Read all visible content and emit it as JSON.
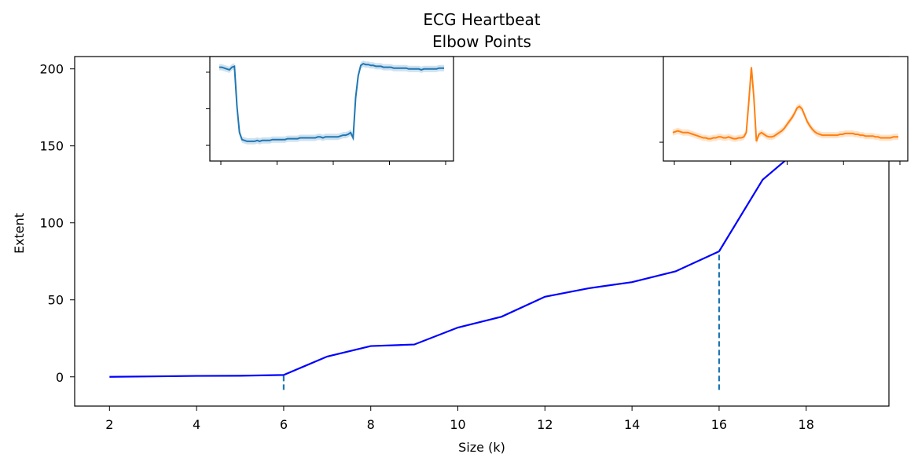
{
  "chart_data": {
    "type": "line",
    "title": "ECG Heartbeat",
    "subtitle": "Elbow Points",
    "xlabel": "Size (k)",
    "ylabel": "Extent",
    "xlim": [
      1.2,
      19.9
    ],
    "ylim": [
      -19,
      208
    ],
    "x_ticks": [
      2,
      4,
      6,
      8,
      10,
      12,
      14,
      16,
      18
    ],
    "y_ticks": [
      0,
      50,
      100,
      150,
      200
    ],
    "series": [
      {
        "color": "#0000ff",
        "x": [
          2,
          3,
          4,
          5,
          6,
          7,
          8,
          9,
          10,
          11,
          12,
          13,
          14,
          15,
          16,
          17,
          18,
          19
        ],
        "y": [
          0,
          0.3,
          0.6,
          0.7,
          1.2,
          13.2,
          20,
          21,
          32,
          39,
          52,
          57.5,
          61.5,
          68.5,
          81.5,
          128,
          152,
          175
        ]
      }
    ],
    "elbow_points": {
      "x": [
        6,
        16
      ],
      "color": "#1f77b4",
      "line_style": "dashed",
      "y_start": -8.5
    },
    "insets": [
      {
        "k": 6,
        "color": "#1f77b4",
        "profile": [
          0.95,
          0.95,
          0.94,
          0.93,
          0.92,
          0.95,
          0.96,
          0.5,
          0.2,
          0.12,
          0.11,
          0.1,
          0.1,
          0.1,
          0.1,
          0.11,
          0.1,
          0.11,
          0.11,
          0.11,
          0.11,
          0.12,
          0.12,
          0.12,
          0.12,
          0.12,
          0.12,
          0.13,
          0.13,
          0.13,
          0.13,
          0.13,
          0.14,
          0.14,
          0.14,
          0.14,
          0.14,
          0.14,
          0.14,
          0.15,
          0.15,
          0.14,
          0.15,
          0.15,
          0.15,
          0.15,
          0.15,
          0.15,
          0.16,
          0.17,
          0.17,
          0.18,
          0.2,
          0.14,
          0.6,
          0.85,
          0.97,
          0.99,
          0.98,
          0.98,
          0.97,
          0.97,
          0.96,
          0.96,
          0.96,
          0.95,
          0.95,
          0.95,
          0.95,
          0.94,
          0.94,
          0.94,
          0.94,
          0.94,
          0.94,
          0.93,
          0.93,
          0.93,
          0.93,
          0.93,
          0.92,
          0.93,
          0.93,
          0.93,
          0.93,
          0.93,
          0.93,
          0.94,
          0.94,
          0.94
        ]
      },
      {
        "k": 16,
        "color": "#ff7f0e",
        "profile": [
          0.2,
          0.21,
          0.22,
          0.21,
          0.2,
          0.2,
          0.2,
          0.19,
          0.18,
          0.17,
          0.16,
          0.15,
          0.14,
          0.14,
          0.13,
          0.13,
          0.14,
          0.14,
          0.15,
          0.15,
          0.14,
          0.14,
          0.15,
          0.14,
          0.13,
          0.13,
          0.14,
          0.14,
          0.15,
          0.2,
          0.55,
          0.95,
          0.6,
          0.1,
          0.18,
          0.2,
          0.18,
          0.16,
          0.15,
          0.15,
          0.16,
          0.18,
          0.2,
          0.22,
          0.25,
          0.29,
          0.33,
          0.37,
          0.42,
          0.48,
          0.5,
          0.47,
          0.4,
          0.33,
          0.28,
          0.24,
          0.21,
          0.19,
          0.18,
          0.17,
          0.17,
          0.17,
          0.17,
          0.17,
          0.17,
          0.17,
          0.18,
          0.18,
          0.19,
          0.19,
          0.19,
          0.19,
          0.18,
          0.18,
          0.17,
          0.17,
          0.16,
          0.16,
          0.16,
          0.16,
          0.15,
          0.15,
          0.14,
          0.14,
          0.14,
          0.14,
          0.14,
          0.15,
          0.15,
          0.15
        ]
      }
    ]
  }
}
